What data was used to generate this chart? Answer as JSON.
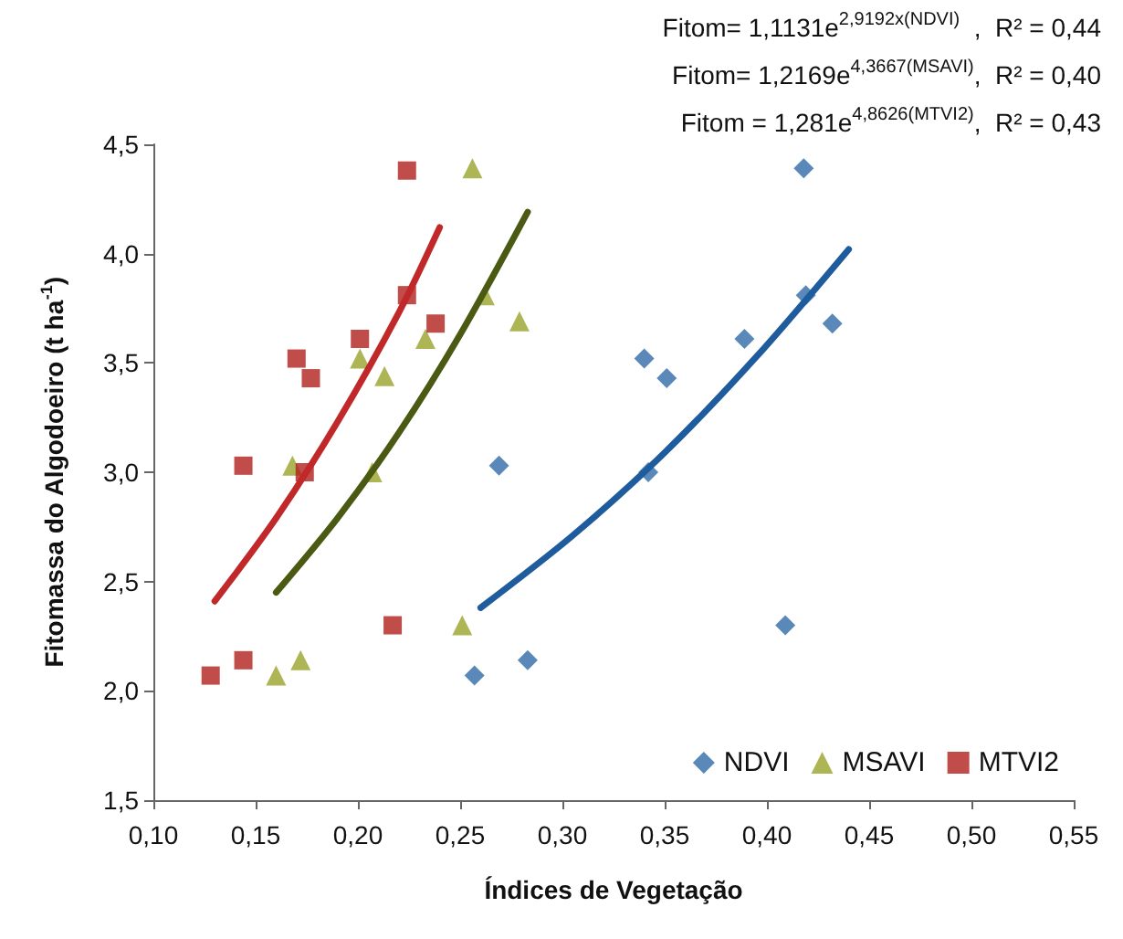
{
  "chart_data": {
    "type": "scatter",
    "xlabel": "Índices de Vegetação",
    "ylabel": "Fitomassa do Algodoeiro (t ha$^{-1}$)",
    "xlim": [
      0.1,
      0.55
    ],
    "xticks": [
      {
        "value": 0.1,
        "label": "0,10"
      },
      {
        "value": 0.15,
        "label": "0,15"
      },
      {
        "value": 0.2,
        "label": "0,20"
      },
      {
        "value": 0.25,
        "label": "0,25"
      },
      {
        "value": 0.3,
        "label": "0,30"
      },
      {
        "value": 0.35,
        "label": "0,35"
      },
      {
        "value": 0.4,
        "label": "0,40"
      },
      {
        "value": 0.45,
        "label": "0,45"
      },
      {
        "value": 0.5,
        "label": "0,50"
      },
      {
        "value": 0.55,
        "label": "0,55"
      }
    ],
    "ylim": [
      1.5,
      4.5
    ],
    "yticks": [
      {
        "value": 1.5,
        "label": "1,5"
      },
      {
        "value": 2,
        "label": "2,0"
      },
      {
        "value": 2.5,
        "label": "2,5"
      },
      {
        "value": 3,
        "label": "3,0"
      },
      {
        "value": 3.5,
        "label": "3,5"
      },
      {
        "value": 4,
        "label": "4,0"
      },
      {
        "value": 4.5,
        "label": "4,5"
      }
    ],
    "grid": false,
    "legend": "bottom right",
    "annotations": [
      "Fitom= 1,1131e$^{2,9192x(NDVI)}$  ,  R² = 0,44",
      "Fitom= 1,2169e$^{4,3667(MSAVI)}$,  R² = 0,40",
      "Fitom = 1,281e$^{4,8626(MTVI2)}$,  R² = 0,43"
    ],
    "series": [
      {
        "name": "NDVI",
        "marker": "diamond",
        "color": "#2f6aa8",
        "x": [
          0.257,
          0.283,
          0.269,
          0.34,
          0.351,
          0.342,
          0.389,
          0.419,
          0.418,
          0.432,
          0.409
        ],
        "values": [
          2.07,
          2.14,
          3.03,
          3.52,
          3.43,
          3.0,
          3.61,
          3.81,
          4.39,
          3.68,
          2.3
        ]
      },
      {
        "name": "MSAVI",
        "marker": "triangle",
        "color": "#9aa32a",
        "x": [
          0.16,
          0.172,
          0.168,
          0.201,
          0.213,
          0.207,
          0.233,
          0.262,
          0.256,
          0.279,
          0.251
        ],
        "values": [
          2.07,
          2.14,
          3.03,
          3.52,
          3.44,
          3.0,
          3.61,
          3.81,
          4.39,
          3.69,
          2.3
        ]
      },
      {
        "name": "MTVI2",
        "marker": "square",
        "color": "#b0201c",
        "x": [
          0.128,
          0.144,
          0.144,
          0.17,
          0.177,
          0.174,
          0.201,
          0.224,
          0.224,
          0.238,
          0.217
        ],
        "values": [
          2.07,
          2.14,
          3.03,
          3.52,
          3.43,
          3.0,
          3.61,
          3.81,
          4.38,
          3.68,
          2.3
        ]
      },
      {
        "type": "line",
        "marker": "none",
        "color": "#1f5c9e",
        "x": [
          0.26,
          0.305,
          0.35,
          0.395,
          0.44
        ],
        "values": [
          2.38,
          2.71,
          3.09,
          3.53,
          4.02
        ]
      },
      {
        "type": "line",
        "marker": "none",
        "color": "#4a5a12",
        "x": [
          0.16,
          0.19,
          0.22,
          0.25,
          0.283
        ],
        "values": [
          2.45,
          2.79,
          3.18,
          3.63,
          4.19
        ]
      },
      {
        "type": "line",
        "marker": "none",
        "color": "#c0282a",
        "x": [
          0.13,
          0.16,
          0.19,
          0.22,
          0.24
        ],
        "values": [
          2.41,
          2.79,
          3.23,
          3.73,
          4.12
        ]
      }
    ]
  }
}
